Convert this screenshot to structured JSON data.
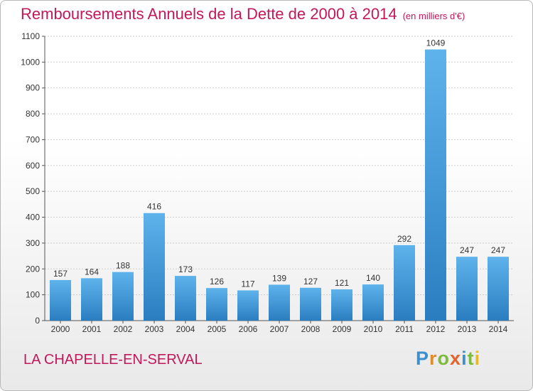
{
  "chart_data": {
    "type": "bar",
    "title": "Remboursements Annuels de la Dette de 2000 à 2014",
    "unit_note": "(en milliers d'€)",
    "categories": [
      "2000",
      "2001",
      "2002",
      "2003",
      "2004",
      "2005",
      "2006",
      "2007",
      "2008",
      "2009",
      "2010",
      "2011",
      "2012",
      "2013",
      "2014"
    ],
    "values": [
      157,
      164,
      188,
      416,
      173,
      126,
      117,
      139,
      127,
      121,
      140,
      292,
      1049,
      247,
      247
    ],
    "ylim": [
      0,
      1100
    ],
    "yticks": [
      0,
      100,
      200,
      300,
      400,
      500,
      600,
      700,
      800,
      900,
      1000,
      1100
    ],
    "xlabel": "",
    "ylabel": "",
    "grid": true,
    "bar_color_light": "#5eb3ec",
    "bar_color_dark": "#2a7ec0"
  },
  "footer": {
    "place_name": "LA CHAPELLE-EN-SERVAL",
    "logo_letters": [
      {
        "ch": "P",
        "color": "#3a8fd1"
      },
      {
        "ch": "r",
        "color": "#e08b2c"
      },
      {
        "ch": "o",
        "color": "#7dbb3c"
      },
      {
        "ch": "x",
        "color": "#e2632c"
      },
      {
        "ch": "i",
        "color": "#3a8fd1"
      },
      {
        "ch": "t",
        "color": "#7dbb3c"
      },
      {
        "ch": "i",
        "color": "#e8b92d"
      }
    ]
  },
  "colors": {
    "title": "#c2185b",
    "axis_text": "#333333",
    "grid": "#cccccc"
  }
}
